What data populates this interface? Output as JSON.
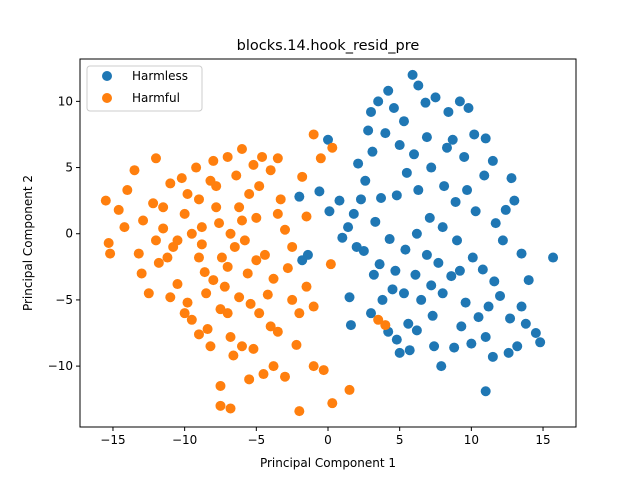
{
  "chart_data": {
    "type": "scatter",
    "title": "blocks.14.hook_resid_pre",
    "xlabel": "Principal Component 1",
    "ylabel": "Principal Component 2",
    "xlim": [
      -17.3,
      17.3
    ],
    "ylim": [
      -14.6,
      13.2
    ],
    "xticks": [
      -15,
      -10,
      -5,
      0,
      5,
      10,
      15
    ],
    "xtick_labels": [
      "−15",
      "−10",
      "−5",
      "0",
      "5",
      "10",
      "15"
    ],
    "yticks": [
      -10,
      -5,
      0,
      5,
      10
    ],
    "ytick_labels": [
      "−10",
      "−5",
      "0",
      "5",
      "10"
    ],
    "grid": false,
    "legend": "top-left",
    "series": [
      {
        "name": "Harmless",
        "color": "#1f77b4",
        "points": [
          [
            15.7,
            -1.8
          ],
          [
            11.0,
            -11.9
          ],
          [
            7.9,
            -10.0
          ],
          [
            5.0,
            -9.0
          ],
          [
            5.9,
            12.0
          ],
          [
            6.3,
            11.2
          ],
          [
            1.6,
            -6.9
          ],
          [
            0.0,
            7.1
          ],
          [
            -1.8,
            -2.0
          ],
          [
            -2.0,
            2.8
          ],
          [
            -0.6,
            3.2
          ],
          [
            0.1,
            1.7
          ],
          [
            1.5,
            -4.8
          ],
          [
            3.0,
            -6.0
          ],
          [
            -1.4,
            -1.6
          ],
          [
            0.8,
            2.5
          ],
          [
            1.4,
            0.5
          ],
          [
            1.8,
            1.5
          ],
          [
            2.5,
            -1.3
          ],
          [
            2.1,
            5.3
          ],
          [
            2.8,
            7.8
          ],
          [
            3.0,
            9.2
          ],
          [
            3.5,
            10.0
          ],
          [
            4.2,
            10.8
          ],
          [
            4.6,
            9.5
          ],
          [
            5.3,
            8.5
          ],
          [
            6.8,
            9.9
          ],
          [
            7.5,
            10.3
          ],
          [
            8.4,
            9.2
          ],
          [
            9.2,
            10.0
          ],
          [
            9.8,
            9.5
          ],
          [
            8.7,
            7.1
          ],
          [
            10.2,
            7.5
          ],
          [
            11.0,
            7.2
          ],
          [
            11.5,
            5.5
          ],
          [
            12.8,
            4.2
          ],
          [
            13.0,
            2.5
          ],
          [
            12.4,
            1.8
          ],
          [
            11.7,
            0.8
          ],
          [
            12.2,
            -0.5
          ],
          [
            13.5,
            -1.5
          ],
          [
            14.0,
            -3.5
          ],
          [
            13.5,
            -5.5
          ],
          [
            14.5,
            -7.5
          ],
          [
            14.8,
            -8.2
          ],
          [
            13.2,
            -8.5
          ],
          [
            12.6,
            -9.0
          ],
          [
            11.5,
            -9.3
          ],
          [
            11.0,
            -7.8
          ],
          [
            10.5,
            -6.3
          ],
          [
            9.6,
            -5.2
          ],
          [
            8.8,
            -8.6
          ],
          [
            7.4,
            -8.5
          ],
          [
            6.2,
            -7.3
          ],
          [
            5.6,
            -6.8
          ],
          [
            4.8,
            -8.0
          ],
          [
            4.2,
            -7.4
          ],
          [
            3.8,
            -5.0
          ],
          [
            4.5,
            -4.2
          ],
          [
            5.3,
            -4.5
          ],
          [
            6.1,
            -3.1
          ],
          [
            7.2,
            -3.9
          ],
          [
            8.0,
            -4.5
          ],
          [
            9.2,
            -2.8
          ],
          [
            10.1,
            -1.8
          ],
          [
            10.8,
            -2.7
          ],
          [
            11.6,
            -3.6
          ],
          [
            9.0,
            -0.5
          ],
          [
            8.0,
            0.5
          ],
          [
            7.1,
            1.2
          ],
          [
            6.2,
            0.0
          ],
          [
            5.4,
            -1.2
          ],
          [
            4.3,
            -0.4
          ],
          [
            3.3,
            0.9
          ],
          [
            3.7,
            2.7
          ],
          [
            4.8,
            2.9
          ],
          [
            5.5,
            4.6
          ],
          [
            6.3,
            3.3
          ],
          [
            7.2,
            5.0
          ],
          [
            8.1,
            3.6
          ],
          [
            8.9,
            2.4
          ],
          [
            9.7,
            3.3
          ],
          [
            10.3,
            1.7
          ],
          [
            10.9,
            4.4
          ],
          [
            9.5,
            5.8
          ],
          [
            8.3,
            6.5
          ],
          [
            6.9,
            7.3
          ],
          [
            6.0,
            6.0
          ],
          [
            5.0,
            6.7
          ],
          [
            4.0,
            7.6
          ],
          [
            3.1,
            6.2
          ],
          [
            2.6,
            4.0
          ],
          [
            2.3,
            2.6
          ],
          [
            3.6,
            -2.3
          ],
          [
            4.7,
            -2.8
          ],
          [
            6.9,
            -1.6
          ],
          [
            7.7,
            -2.2
          ],
          [
            8.6,
            -3.2
          ],
          [
            11.2,
            -5.5
          ],
          [
            12.0,
            -4.7
          ],
          [
            12.7,
            -6.4
          ],
          [
            13.8,
            -6.8
          ],
          [
            10.0,
            -8.3
          ],
          [
            9.3,
            -7.0
          ],
          [
            7.3,
            -6.2
          ],
          [
            6.5,
            -5.0
          ],
          [
            5.7,
            -8.8
          ],
          [
            3.2,
            -3.1
          ],
          [
            2.0,
            -1.0
          ],
          [
            1.0,
            -0.3
          ]
        ]
      },
      {
        "name": "Harmful",
        "color": "#ff7f0e",
        "points": [
          [
            -15.5,
            2.5
          ],
          [
            -15.2,
            -1.5
          ],
          [
            -15.3,
            -0.7
          ],
          [
            -14.6,
            1.8
          ],
          [
            -14.0,
            3.3
          ],
          [
            -13.5,
            4.8
          ],
          [
            -13.2,
            -1.5
          ],
          [
            -12.9,
            1.0
          ],
          [
            -12.5,
            -4.5
          ],
          [
            -12.0,
            5.7
          ],
          [
            -12.2,
            2.3
          ],
          [
            -11.8,
            -2.2
          ],
          [
            -11.5,
            0.4
          ],
          [
            -11.0,
            3.8
          ],
          [
            -10.8,
            -1.0
          ],
          [
            -10.5,
            -3.8
          ],
          [
            -10.2,
            4.2
          ],
          [
            -10.0,
            1.5
          ],
          [
            -9.8,
            -5.2
          ],
          [
            -9.5,
            -6.5
          ],
          [
            -9.2,
            5.0
          ],
          [
            -9.0,
            2.6
          ],
          [
            -8.8,
            -0.8
          ],
          [
            -8.6,
            -2.9
          ],
          [
            -8.4,
            -7.2
          ],
          [
            -8.2,
            -8.5
          ],
          [
            -8.0,
            5.5
          ],
          [
            -7.8,
            3.6
          ],
          [
            -7.6,
            0.8
          ],
          [
            -7.4,
            -1.8
          ],
          [
            -7.2,
            -4.0
          ],
          [
            -7.0,
            -6.0
          ],
          [
            -6.8,
            -7.8
          ],
          [
            -6.6,
            -9.2
          ],
          [
            -6.4,
            4.4
          ],
          [
            -6.2,
            2.0
          ],
          [
            -6.0,
            6.4
          ],
          [
            -5.8,
            -0.5
          ],
          [
            -5.6,
            -3.0
          ],
          [
            -5.4,
            -5.3
          ],
          [
            -5.2,
            -8.7
          ],
          [
            -5.0,
            1.2
          ],
          [
            -4.8,
            3.6
          ],
          [
            -4.6,
            5.8
          ],
          [
            -4.4,
            -1.6
          ],
          [
            -4.2,
            -4.6
          ],
          [
            -4.0,
            -7.0
          ],
          [
            -3.8,
            -10.0
          ],
          [
            -3.5,
            5.7
          ],
          [
            -3.3,
            2.6
          ],
          [
            -3.0,
            0.3
          ],
          [
            -2.8,
            -2.6
          ],
          [
            -2.5,
            -5.0
          ],
          [
            -2.2,
            -8.4
          ],
          [
            -2.0,
            -13.4
          ],
          [
            -1.8,
            4.3
          ],
          [
            -1.5,
            1.3
          ],
          [
            -1.0,
            7.5
          ],
          [
            -1.0,
            -5.5
          ],
          [
            -1.0,
            -10.0
          ],
          [
            -0.5,
            5.7
          ],
          [
            -0.3,
            -10.3
          ],
          [
            0.3,
            6.5
          ],
          [
            0.2,
            -2.3
          ],
          [
            0.3,
            -12.8
          ],
          [
            1.5,
            -11.8
          ],
          [
            3.5,
            -6.5
          ],
          [
            4.0,
            -6.9
          ],
          [
            -7.5,
            -11.5
          ],
          [
            -7.5,
            -13.0
          ],
          [
            -6.8,
            -13.2
          ],
          [
            -5.5,
            -11.0
          ],
          [
            -4.5,
            -10.6
          ],
          [
            -3.0,
            -10.8
          ],
          [
            -8.5,
            -4.5
          ],
          [
            -9.0,
            -1.8
          ],
          [
            -8.0,
            -3.5
          ],
          [
            -7.0,
            -2.5
          ],
          [
            -6.5,
            -1.0
          ],
          [
            -6.0,
            1.0
          ],
          [
            -5.5,
            3.0
          ],
          [
            -7.8,
            2.0
          ],
          [
            -8.8,
            0.5
          ],
          [
            -9.5,
            0.0
          ],
          [
            -10.5,
            -0.5
          ],
          [
            -11.2,
            -1.8
          ],
          [
            -12.0,
            -0.5
          ],
          [
            -13.0,
            -3.0
          ],
          [
            -14.2,
            0.5
          ],
          [
            -11.5,
            2.0
          ],
          [
            -9.8,
            3.0
          ],
          [
            -8.2,
            4.0
          ],
          [
            -7.0,
            5.8
          ],
          [
            -5.2,
            5.2
          ],
          [
            -4.0,
            4.8
          ],
          [
            -3.8,
            -3.4
          ],
          [
            -4.8,
            -6.0
          ],
          [
            -6.2,
            -4.8
          ],
          [
            -7.5,
            -5.7
          ],
          [
            -9.0,
            -7.6
          ],
          [
            -10.0,
            -6.0
          ],
          [
            -11.0,
            -4.8
          ],
          [
            -6.0,
            -8.5
          ],
          [
            -3.5,
            -7.4
          ],
          [
            -2.0,
            -6.0
          ],
          [
            -1.5,
            -4.0
          ],
          [
            -2.5,
            -1.0
          ],
          [
            -3.5,
            1.5
          ],
          [
            -5.0,
            -2.0
          ],
          [
            -6.8,
            0.0
          ]
        ]
      }
    ]
  }
}
